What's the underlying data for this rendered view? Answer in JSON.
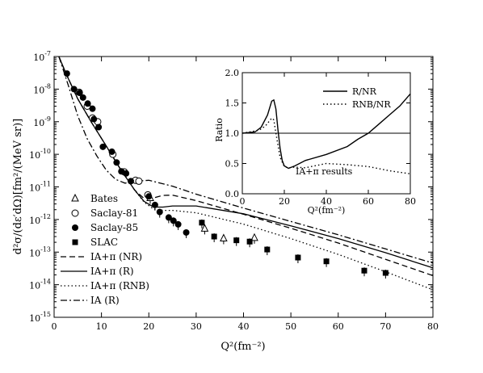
{
  "chart_data": [
    {
      "type": "scatter",
      "ylabel": "d²σ/(dε′dΩ)[fm²/(MeV sr)]",
      "xlabel": "Q²(fm⁻²)",
      "xlim": [
        0,
        80
      ],
      "ylim": [
        1e-15,
        1e-07
      ],
      "yscale": "log",
      "xticks": [
        0,
        10,
        20,
        30,
        40,
        50,
        60,
        70,
        80
      ],
      "yticks": [
        {
          "exp": -15,
          "label": "10",
          "sup": "-15"
        },
        {
          "exp": -14,
          "label": "10",
          "sup": "-14"
        },
        {
          "exp": -13,
          "label": "10",
          "sup": "-13"
        },
        {
          "exp": -12,
          "label": "10",
          "sup": "-12"
        },
        {
          "exp": -11,
          "label": "10",
          "sup": "-11"
        },
        {
          "exp": -10,
          "label": "10",
          "sup": "-10"
        },
        {
          "exp": -9,
          "label": "10",
          "sup": "-9"
        },
        {
          "exp": -8,
          "label": "10",
          "sup": "-8"
        },
        {
          "exp": -7,
          "label": "10",
          "sup": "-7"
        }
      ],
      "legend_position": "lower-left",
      "data_series": [
        {
          "name": "Bates",
          "marker": "open-triangle",
          "points": [
            [
              20.3,
              4.5e-12
            ],
            [
              31.8,
              5.2e-13
            ],
            [
              35.8,
              2.6e-13
            ],
            [
              42.3,
              2.7e-13
            ]
          ]
        },
        {
          "name": "Saclay-81",
          "marker": "open-circle",
          "points": [
            [
              5.3,
              8e-09
            ],
            [
              7.0,
              3e-09
            ],
            [
              8.1,
              1.3e-09
            ],
            [
              9.2,
              1e-09
            ],
            [
              12.4,
              1e-10
            ],
            [
              14.8,
              2.9e-11
            ],
            [
              17.2,
              1.6e-11
            ],
            [
              17.9,
              1.5e-11
            ],
            [
              19.8,
              5.7e-12
            ]
          ]
        },
        {
          "name": "Saclay-85",
          "marker": "filled-circle",
          "points": [
            [
              2.7,
              3e-08
            ],
            [
              4.2,
              1e-08
            ],
            [
              5.4,
              7.7e-09
            ],
            [
              6.1,
              5.5e-09
            ],
            [
              7.1,
              3.6e-09
            ],
            [
              8.1,
              2.5e-09
            ],
            [
              8.4,
              1.2e-09
            ],
            [
              9.4,
              6.8e-10
            ],
            [
              10.3,
              1.7e-10
            ],
            [
              12.2,
              1.2e-10
            ],
            [
              13.2,
              5.6e-11
            ],
            [
              14.2,
              3e-11
            ],
            [
              15.2,
              2.6e-11
            ],
            [
              16.2,
              1.5e-11
            ],
            [
              20.0,
              5.1e-12
            ],
            [
              21.3,
              2.8e-12
            ],
            [
              22.3,
              1.7e-12
            ],
            [
              24.2,
              1.15e-12
            ],
            [
              25.2,
              9.2e-13
            ],
            [
              26.2,
              7.1e-13
            ],
            [
              27.9,
              4e-13
            ]
          ]
        },
        {
          "name": "SLAC",
          "marker": "filled-square",
          "points": [
            [
              31.2,
              8e-13
            ],
            [
              33.8,
              3e-13
            ],
            [
              38.5,
              2.3e-13
            ],
            [
              41.3,
              2.1e-13
            ],
            [
              45.0,
              1.2e-13
            ],
            [
              51.5,
              6.8e-14
            ],
            [
              57.5,
              5.2e-14
            ],
            [
              65.5,
              2.7e-14
            ],
            [
              70.0,
              2.3e-14
            ]
          ]
        }
      ],
      "curves": [
        {
          "name": "IA+π (NR)",
          "style": "dashed",
          "points": [
            [
              1,
              1e-07
            ],
            [
              2.5,
              3e-08
            ],
            [
              5,
              5e-09
            ],
            [
              8,
              9e-10
            ],
            [
              11,
              1.8e-10
            ],
            [
              14,
              3.5e-11
            ],
            [
              17,
              8e-12
            ],
            [
              19,
              4.4e-12
            ],
            [
              21,
              4.6e-12
            ],
            [
              23,
              5.5e-12
            ],
            [
              25,
              5.6e-12
            ],
            [
              30,
              3.8e-12
            ],
            [
              40,
              1.45e-12
            ],
            [
              50,
              5.4e-13
            ],
            [
              60,
              1.9e-13
            ],
            [
              70,
              6e-14
            ],
            [
              80,
              1.9e-14
            ]
          ]
        },
        {
          "name": "IA+π (R)",
          "style": "solid",
          "points": [
            [
              1,
              1e-07
            ],
            [
              2.5,
              3e-08
            ],
            [
              5,
              5e-09
            ],
            [
              8,
              9e-10
            ],
            [
              11,
              1.8e-10
            ],
            [
              14,
              3.5e-11
            ],
            [
              17,
              8e-12
            ],
            [
              19,
              3.6e-12
            ],
            [
              21,
              2.4e-12
            ],
            [
              23,
              2.4e-12
            ],
            [
              25,
              2.6e-12
            ],
            [
              30,
              2.6e-12
            ],
            [
              40,
              1.5e-12
            ],
            [
              50,
              6.4e-13
            ],
            [
              60,
              2.6e-13
            ],
            [
              70,
              9.6e-14
            ],
            [
              80,
              3.3e-14
            ]
          ]
        },
        {
          "name": "IA+π (RNB)",
          "style": "dotted",
          "points": [
            [
              1,
              1e-07
            ],
            [
              2.5,
              3e-08
            ],
            [
              5,
              5e-09
            ],
            [
              8,
              9e-10
            ],
            [
              11,
              1.8e-10
            ],
            [
              14,
              3.5e-11
            ],
            [
              17,
              8e-12
            ],
            [
              19,
              3.4e-12
            ],
            [
              21,
              2.1e-12
            ],
            [
              23,
              1.9e-12
            ],
            [
              25,
              1.9e-12
            ],
            [
              30,
              1.6e-12
            ],
            [
              40,
              7.2e-13
            ],
            [
              50,
              2.6e-13
            ],
            [
              60,
              8.5e-14
            ],
            [
              70,
              2.5e-14
            ],
            [
              80,
              7e-15
            ]
          ]
        },
        {
          "name": "IA (R)",
          "style": "dash-dot",
          "points": [
            [
              1,
              1e-07
            ],
            [
              3,
              1.3e-08
            ],
            [
              5,
              1.5e-09
            ],
            [
              7,
              3e-10
            ],
            [
              9,
              9e-11
            ],
            [
              11,
              3.3e-11
            ],
            [
              13,
              1.7e-11
            ],
            [
              15,
              1.3e-11
            ],
            [
              17,
              1.5e-11
            ],
            [
              20,
              1.6e-11
            ],
            [
              25,
              1.05e-11
            ],
            [
              30,
              6e-12
            ],
            [
              40,
              2.25e-12
            ],
            [
              50,
              8.7e-13
            ],
            [
              60,
              3.4e-13
            ],
            [
              70,
              1.25e-13
            ],
            [
              80,
              4.6e-14
            ]
          ]
        }
      ]
    },
    {
      "type": "line",
      "ylabel": "Ratio",
      "xlabel": "Q²(fm⁻²)",
      "xlim": [
        0,
        80
      ],
      "ylim": [
        0.0,
        2.0
      ],
      "xticks": [
        0,
        20,
        40,
        60,
        80
      ],
      "yticks": [
        "0.0",
        "0.5",
        "1.0",
        "1.5",
        "2.0"
      ],
      "annotation": "IA+π results",
      "legend_position": "top-right",
      "reference_line": 1.0,
      "series": [
        {
          "name": "R/NR",
          "style": "solid",
          "points": [
            [
              0,
              1.0
            ],
            [
              6,
              1.02
            ],
            [
              9,
              1.1
            ],
            [
              12,
              1.3
            ],
            [
              14,
              1.53
            ],
            [
              15,
              1.55
            ],
            [
              16,
              1.4
            ],
            [
              17,
              1.05
            ],
            [
              18,
              0.75
            ],
            [
              19,
              0.55
            ],
            [
              20,
              0.46
            ],
            [
              22,
              0.42
            ],
            [
              25,
              0.46
            ],
            [
              30,
              0.55
            ],
            [
              40,
              0.65
            ],
            [
              50,
              0.78
            ],
            [
              55,
              0.9
            ],
            [
              60,
              1.0
            ],
            [
              65,
              1.15
            ],
            [
              70,
              1.3
            ],
            [
              75,
              1.45
            ],
            [
              80,
              1.65
            ]
          ]
        },
        {
          "name": "RNB/NR",
          "style": "dotted",
          "points": [
            [
              0,
              1.0
            ],
            [
              8,
              1.05
            ],
            [
              11,
              1.12
            ],
            [
              14,
              1.25
            ],
            [
              15,
              1.22
            ],
            [
              16,
              1.0
            ],
            [
              17,
              0.8
            ],
            [
              18,
              0.6
            ],
            [
              20,
              0.45
            ],
            [
              22,
              0.43
            ],
            [
              25,
              0.44
            ],
            [
              30,
              0.43
            ],
            [
              40,
              0.5
            ],
            [
              50,
              0.48
            ],
            [
              60,
              0.45
            ],
            [
              70,
              0.38
            ],
            [
              80,
              0.33
            ]
          ]
        }
      ]
    }
  ]
}
